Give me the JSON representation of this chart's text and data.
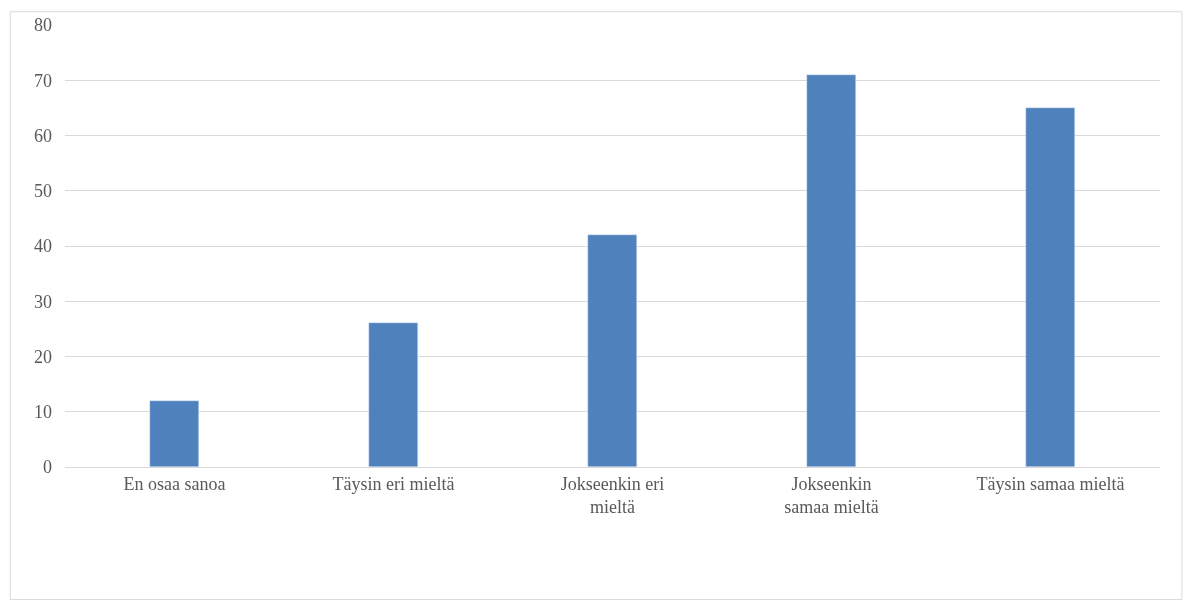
{
  "chart_data": {
    "type": "bar",
    "categories": [
      "En osaa sanoa",
      "Täysin eri mieltä",
      "Jokseenkin eri mieltä",
      "Jokseenkin samaa mieltä",
      "Täysin samaa mieltä"
    ],
    "values": [
      12,
      26,
      42,
      71,
      65
    ],
    "color": "#4f81bd",
    "ylim": [
      0,
      80
    ],
    "yticks": [
      0,
      10,
      20,
      30,
      40,
      50,
      60,
      70,
      80
    ],
    "grid": "y",
    "legend": false
  }
}
